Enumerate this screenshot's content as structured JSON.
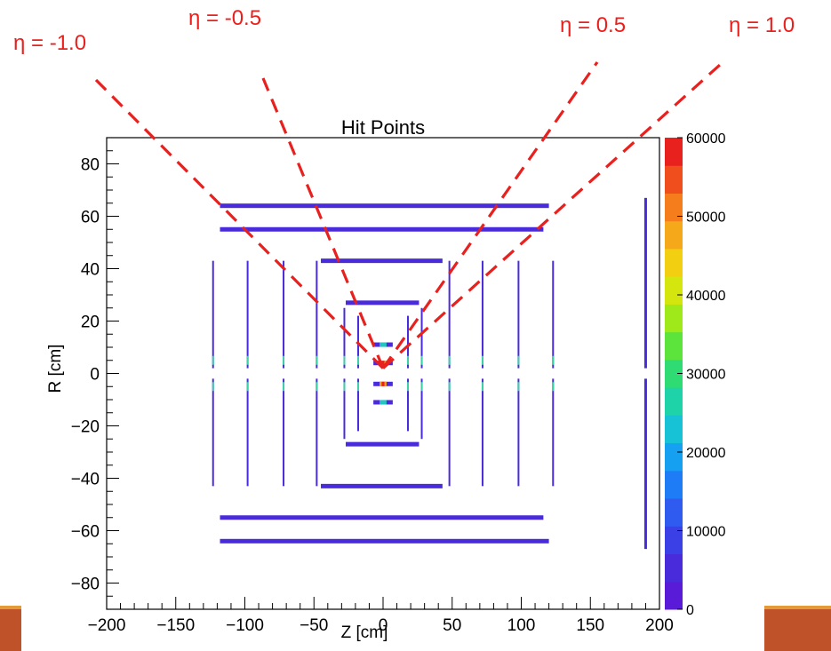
{
  "chart_data": {
    "type": "heatmap",
    "title": "Hit Points",
    "xlabel": "Z [cm]",
    "ylabel": "R [cm]",
    "xlim": [
      -200,
      200
    ],
    "ylim": [
      -90,
      90
    ],
    "x_ticks": [
      -200,
      -150,
      -100,
      -50,
      0,
      50,
      100,
      150,
      200
    ],
    "y_ticks": [
      -80,
      -60,
      -40,
      -20,
      0,
      20,
      40,
      60,
      80
    ],
    "x_tick_labels": [
      "−200",
      "−150",
      "−100",
      "−50",
      "0",
      "50",
      "100",
      "150",
      "200"
    ],
    "y_tick_labels": [
      "−80",
      "−60",
      "−40",
      "−20",
      "0",
      "20",
      "40",
      "60",
      "80"
    ],
    "colorbar": {
      "min": 0,
      "max": 60000,
      "ticks": [
        0,
        10000,
        20000,
        30000,
        40000,
        50000,
        60000
      ],
      "tick_labels": [
        "0",
        "10000",
        "20000",
        "30000",
        "40000",
        "50000",
        "60000"
      ]
    },
    "barrel_layers": [
      {
        "r": 64,
        "z_min": -118,
        "z_max": 120
      },
      {
        "r": 55,
        "z_min": -118,
        "z_max": 116
      },
      {
        "r": 43,
        "z_min": -45,
        "z_max": 43
      },
      {
        "r": 27,
        "z_min": -27,
        "z_max": 26
      },
      {
        "r": 11,
        "z_min": -7,
        "z_max": 7
      },
      {
        "r": 4,
        "z_min": -7,
        "z_max": 7
      },
      {
        "r": -4,
        "z_min": -7,
        "z_max": 7
      },
      {
        "r": -11,
        "z_min": -7,
        "z_max": 7
      },
      {
        "r": -27,
        "z_min": -27,
        "z_max": 26
      },
      {
        "r": -43,
        "z_min": -45,
        "z_max": 43
      },
      {
        "r": -55,
        "z_min": -118,
        "z_max": 116
      },
      {
        "r": -64,
        "z_min": -118,
        "z_max": 120
      }
    ],
    "endcap_disks": [
      {
        "z": -123,
        "r_min": 2,
        "r_max": 43
      },
      {
        "z": -98,
        "r_min": 2,
        "r_max": 43
      },
      {
        "z": -72,
        "r_min": 2,
        "r_max": 43
      },
      {
        "z": -48,
        "r_min": 2,
        "r_max": 43
      },
      {
        "z": -28,
        "r_min": 2,
        "r_max": 25
      },
      {
        "z": -18,
        "r_min": 2,
        "r_max": 22
      },
      {
        "z": 18,
        "r_min": 2,
        "r_max": 22
      },
      {
        "z": 28,
        "r_min": 2,
        "r_max": 25
      },
      {
        "z": 48,
        "r_min": 2,
        "r_max": 43
      },
      {
        "z": 72,
        "r_min": 2,
        "r_max": 43
      },
      {
        "z": 98,
        "r_min": 2,
        "r_max": 43
      },
      {
        "z": 123,
        "r_min": 2,
        "r_max": 43
      },
      {
        "z": 190,
        "r_min": 2,
        "r_max": 67
      }
    ]
  },
  "eta_lines": [
    {
      "label": "η = -1.0",
      "eta": -1.0
    },
    {
      "label": "η = -0.5",
      "eta": -0.5
    },
    {
      "label": "η = 0.5",
      "eta": 0.5
    },
    {
      "label": "η = 1.0",
      "eta": 1.0
    }
  ],
  "colors": {
    "eta_line": "#e8201e",
    "detector": "#4a2bdc",
    "footer_accent": "#c0522a",
    "footer_stripe": "#e49a36"
  }
}
